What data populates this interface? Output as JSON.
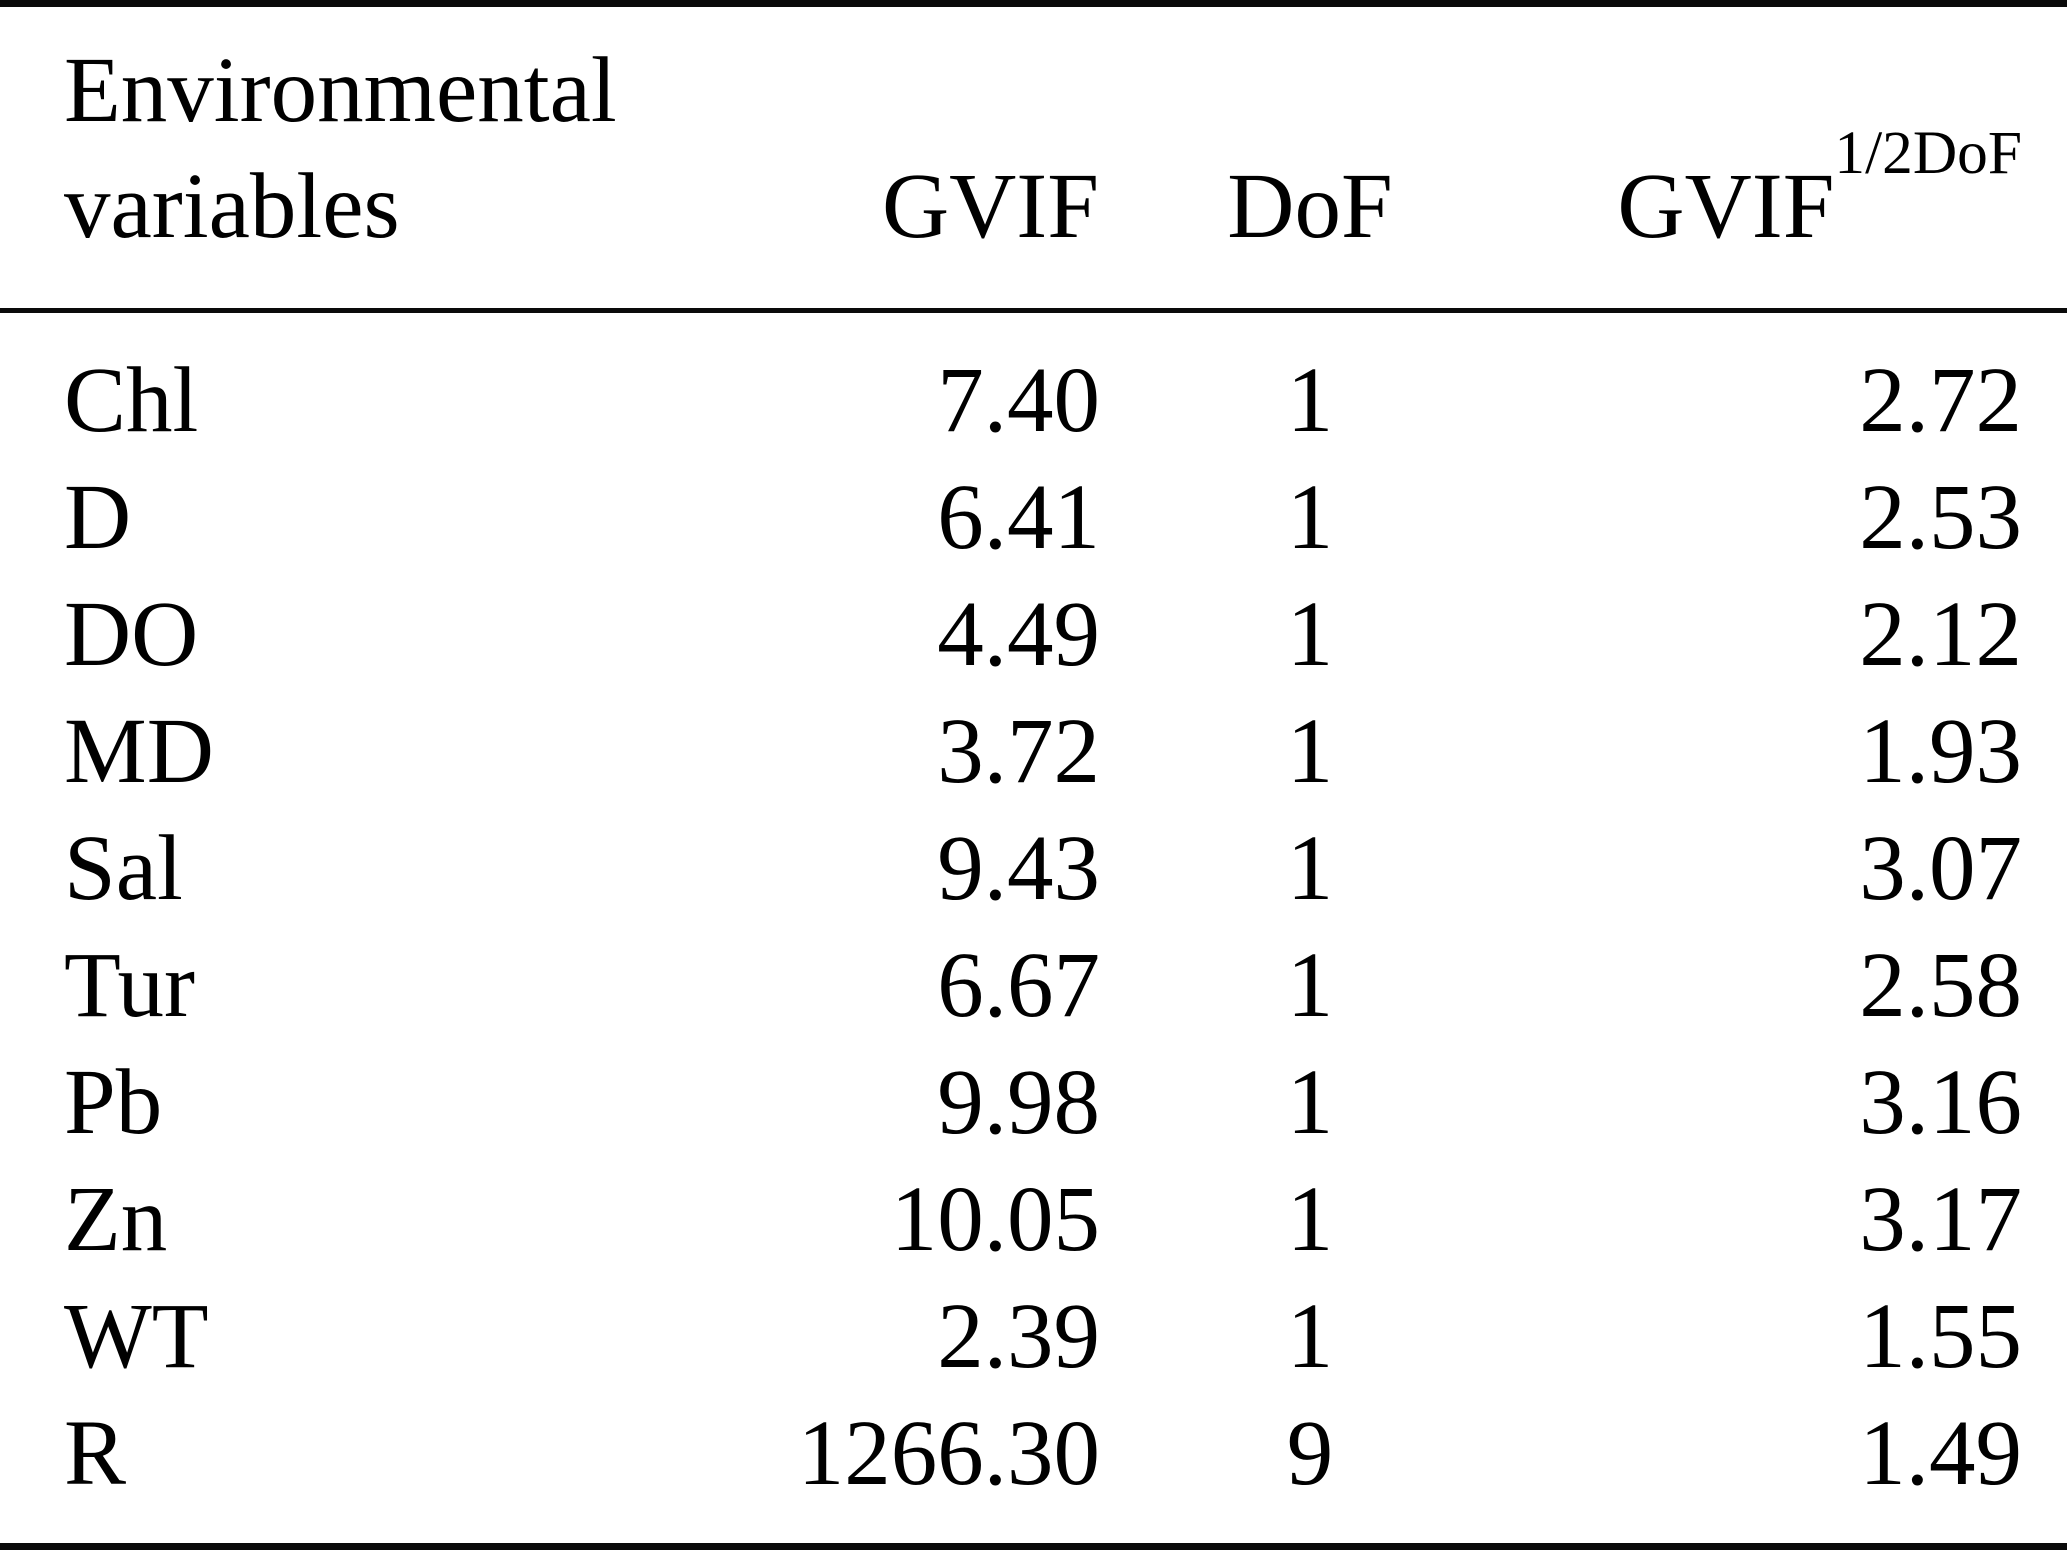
{
  "colors": {
    "background": "#ffffff",
    "text": "#000000",
    "rule": "#0a0a0a"
  },
  "table": {
    "headers": {
      "col1_line1": "Environmental",
      "col1_line2": "variables",
      "col2": "GVIF",
      "col3": "DoF",
      "col4_base": "GVIF",
      "col4_superscript": "1/2DoF"
    },
    "rows": [
      {
        "variable": "Chl",
        "gvif": "7.40",
        "dof": "1",
        "gvif_adj": "2.72"
      },
      {
        "variable": "D",
        "gvif": "6.41",
        "dof": "1",
        "gvif_adj": "2.53"
      },
      {
        "variable": "DO",
        "gvif": "4.49",
        "dof": "1",
        "gvif_adj": "2.12"
      },
      {
        "variable": "MD",
        "gvif": "3.72",
        "dof": "1",
        "gvif_adj": "1.93"
      },
      {
        "variable": "Sal",
        "gvif": "9.43",
        "dof": "1",
        "gvif_adj": "3.07"
      },
      {
        "variable": "Tur",
        "gvif": "6.67",
        "dof": "1",
        "gvif_adj": "2.58"
      },
      {
        "variable": "Pb",
        "gvif": "9.98",
        "dof": "1",
        "gvif_adj": "3.16"
      },
      {
        "variable": "Zn",
        "gvif": "10.05",
        "dof": "1",
        "gvif_adj": "3.17"
      },
      {
        "variable": "WT",
        "gvif": "2.39",
        "dof": "1",
        "gvif_adj": "1.55"
      },
      {
        "variable": "R",
        "gvif": "1266.30",
        "dof": "9",
        "gvif_adj": "1.49"
      }
    ]
  },
  "chart_data": {
    "type": "table",
    "columns": [
      "Environmental variables",
      "GVIF",
      "DoF",
      "GVIF^(1/2DoF)"
    ],
    "rows": [
      [
        "Chl",
        7.4,
        1,
        2.72
      ],
      [
        "D",
        6.41,
        1,
        2.53
      ],
      [
        "DO",
        4.49,
        1,
        2.12
      ],
      [
        "MD",
        3.72,
        1,
        1.93
      ],
      [
        "Sal",
        9.43,
        1,
        3.07
      ],
      [
        "Tur",
        6.67,
        1,
        2.58
      ],
      [
        "Pb",
        9.98,
        1,
        3.16
      ],
      [
        "Zn",
        10.05,
        1,
        3.17
      ],
      [
        "WT",
        2.39,
        1,
        1.55
      ],
      [
        "R",
        1266.3,
        9,
        1.49
      ]
    ]
  }
}
